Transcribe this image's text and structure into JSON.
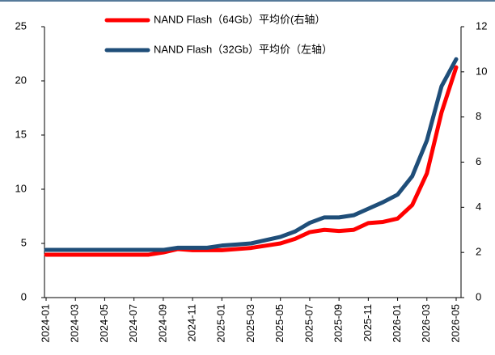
{
  "chart_data": {
    "type": "line",
    "categories": [
      "2024-01",
      null,
      "2024-03",
      null,
      "2024-05",
      null,
      "2024-07",
      null,
      "2024-09",
      null,
      "2024-11",
      null,
      "2025-01",
      null,
      "2025-03",
      null,
      "2025-05",
      null,
      "2025-07",
      null,
      "2025-09",
      null,
      "2025-11",
      null,
      "2026-01",
      null,
      "2026-03",
      null,
      "2026-05"
    ],
    "series": [
      {
        "name": "NAND Flash（64Gb）平均价(右轴）",
        "color": "#ff0000",
        "axis": "y2",
        "values": [
          1.9,
          1.9,
          1.9,
          1.9,
          1.9,
          1.9,
          1.9,
          1.9,
          2.0,
          2.15,
          2.1,
          2.1,
          2.1,
          2.15,
          2.2,
          2.3,
          2.4,
          2.6,
          2.9,
          3.0,
          2.95,
          3.0,
          3.3,
          3.35,
          3.5,
          4.1,
          5.5,
          8.2,
          10.2
        ]
      },
      {
        "name": "NAND Flash（32Gb）平均价（左轴）",
        "color": "#1f4e79",
        "values": [
          4.4,
          4.4,
          4.4,
          4.4,
          4.4,
          4.4,
          4.4,
          4.4,
          4.4,
          4.6,
          4.6,
          4.6,
          4.8,
          4.9,
          5.0,
          5.3,
          5.6,
          6.1,
          6.9,
          7.4,
          7.4,
          7.6,
          8.2,
          8.8,
          9.5,
          11.2,
          14.5,
          19.5,
          22.0
        ]
      }
    ],
    "ylim": [
      0,
      25
    ],
    "yticks": [
      0,
      5,
      10,
      15,
      20,
      25
    ],
    "y2lim": [
      0,
      12
    ],
    "y2ticks": [
      0,
      2,
      4,
      6,
      8,
      10,
      12
    ]
  }
}
